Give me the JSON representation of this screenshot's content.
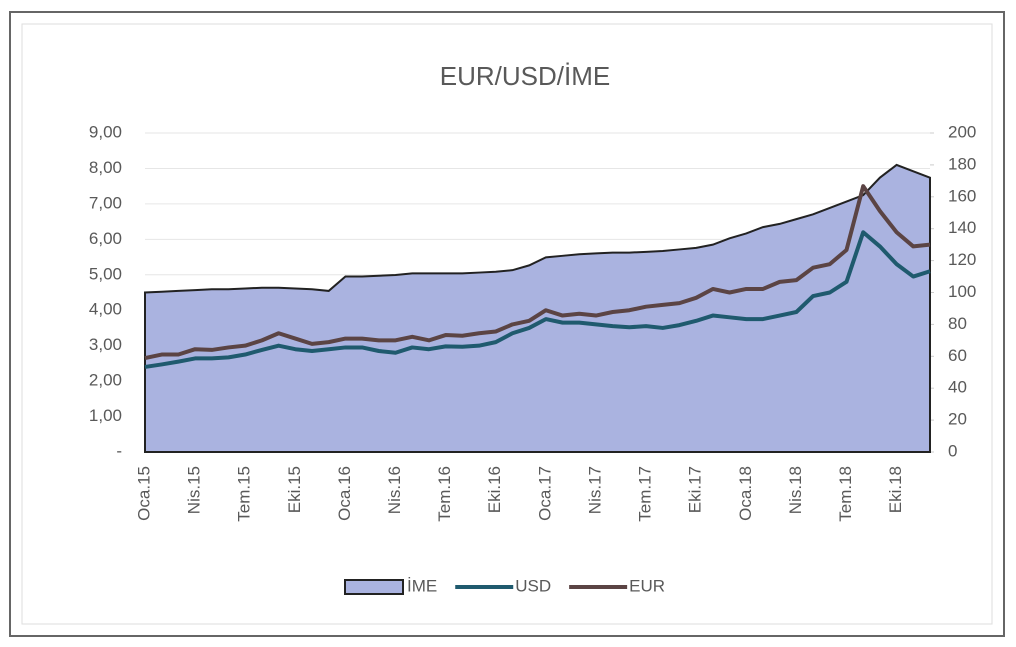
{
  "chart_data": {
    "type": "combo",
    "title": "EUR/USD/İME",
    "categories": [
      "Oca.15",
      null,
      null,
      "Nis.15",
      null,
      null,
      "Tem.15",
      null,
      null,
      "Eki.15",
      null,
      null,
      "Oca.16",
      null,
      null,
      "Nis.16",
      null,
      null,
      "Tem.16",
      null,
      null,
      "Eki.16",
      null,
      null,
      "Oca.17",
      null,
      null,
      "Nis.17",
      null,
      null,
      "Tem.17",
      null,
      null,
      "Eki.17",
      null,
      null,
      "Oca.18",
      null,
      null,
      "Nis.18",
      null,
      null,
      "Tem.18",
      null,
      null,
      "Eki.18",
      null,
      null
    ],
    "series": [
      {
        "name": "İME",
        "type": "area",
        "axis": "y2",
        "color": "#aab3e0",
        "values": [
          100,
          100.5,
          101,
          101.5,
          102,
          102,
          102.5,
          103,
          103,
          102.5,
          102,
          101,
          110,
          110,
          110.5,
          111,
          112,
          112,
          112,
          112,
          112.5,
          113,
          114,
          117,
          122,
          123,
          124,
          124.5,
          125,
          125,
          125.5,
          126,
          127,
          128,
          130,
          134,
          137,
          141,
          143,
          146,
          149,
          153,
          157,
          161,
          172,
          180,
          176,
          172
        ]
      },
      {
        "name": "USD",
        "type": "line",
        "color": "#1f5a6e",
        "values": [
          2.4,
          2.47,
          2.55,
          2.64,
          2.64,
          2.67,
          2.75,
          2.88,
          3.0,
          2.9,
          2.85,
          2.9,
          2.95,
          2.95,
          2.85,
          2.8,
          2.95,
          2.9,
          2.98,
          2.97,
          3.0,
          3.1,
          3.35,
          3.5,
          3.75,
          3.65,
          3.65,
          3.6,
          3.55,
          3.52,
          3.55,
          3.5,
          3.58,
          3.7,
          3.85,
          3.8,
          3.75,
          3.75,
          3.85,
          3.95,
          4.4,
          4.5,
          4.8,
          6.2,
          5.8,
          5.3,
          4.95,
          5.1
        ]
      },
      {
        "name": "EUR",
        "type": "line",
        "color": "#5b4444",
        "values": [
          2.65,
          2.75,
          2.75,
          2.9,
          2.88,
          2.95,
          3.0,
          3.15,
          3.35,
          3.2,
          3.05,
          3.1,
          3.2,
          3.2,
          3.15,
          3.15,
          3.25,
          3.15,
          3.3,
          3.28,
          3.35,
          3.4,
          3.6,
          3.7,
          4.0,
          3.85,
          3.9,
          3.85,
          3.95,
          4.0,
          4.1,
          4.15,
          4.2,
          4.35,
          4.6,
          4.5,
          4.6,
          4.6,
          4.8,
          4.85,
          5.2,
          5.3,
          5.7,
          7.5,
          6.8,
          6.2,
          5.8,
          5.85
        ]
      }
    ],
    "ylim": [
      0,
      9
    ],
    "yticks": [
      {
        "value": 0,
        "label": "-"
      },
      {
        "value": 1,
        "label": "1,00"
      },
      {
        "value": 2,
        "label": "2,00"
      },
      {
        "value": 3,
        "label": "3,00"
      },
      {
        "value": 4,
        "label": "4,00"
      },
      {
        "value": 5,
        "label": "5,00"
      },
      {
        "value": 6,
        "label": "6,00"
      },
      {
        "value": 7,
        "label": "7,00"
      },
      {
        "value": 8,
        "label": "8,00"
      },
      {
        "value": 9,
        "label": "9,00"
      }
    ],
    "y2lim": [
      0,
      200
    ],
    "y2ticks": [
      0,
      20,
      40,
      60,
      80,
      100,
      120,
      140,
      160,
      180,
      200
    ],
    "grid": true,
    "legend": "bottom"
  }
}
